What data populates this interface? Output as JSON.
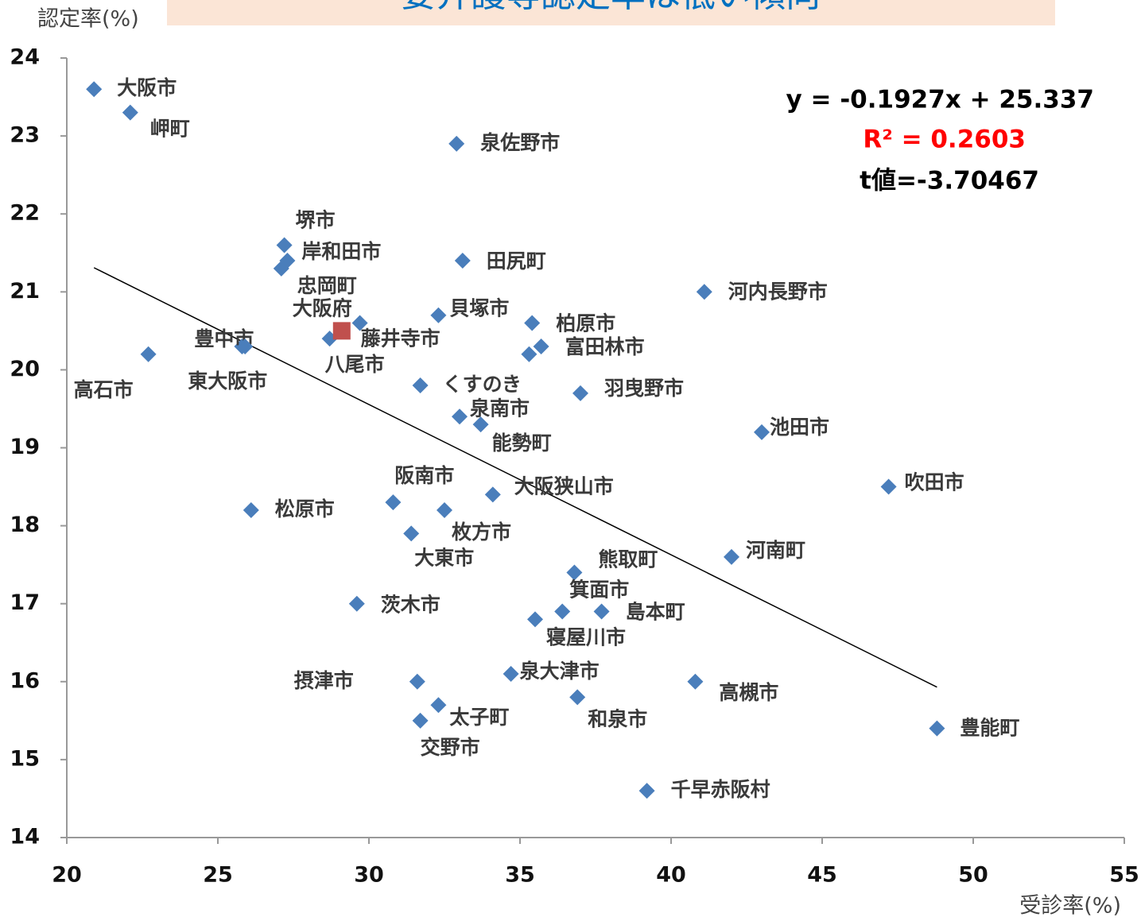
{
  "chart_data": {
    "type": "scatter",
    "title": "要介護等認定率は低い傾向",
    "y_label": "認定率(%)",
    "x_label": "受診率(%)",
    "xlim": [
      20,
      55
    ],
    "xticks": [
      20,
      25,
      30,
      35,
      40,
      45,
      50,
      55
    ],
    "ylim": [
      14,
      24
    ],
    "yticks": [
      14,
      15,
      16,
      17,
      18,
      19,
      20,
      21,
      22,
      23,
      24
    ],
    "grid": false,
    "annotations": [
      {
        "text": "y = -0.1927x + 25.337",
        "color": "#000000"
      },
      {
        "text": "R² = 0.2603",
        "color": "#ff0000"
      },
      {
        "text": "t値=-3.70467",
        "color": "#000000"
      }
    ],
    "trendline": {
      "color": "#000000",
      "x": [
        20.9,
        48.8
      ],
      "values": [
        21.31,
        15.93
      ]
    },
    "series": [
      {
        "color": "#4a7ebb",
        "labels": [
          "大阪市",
          "岬町",
          "高石市",
          "豊中市",
          "東大阪市",
          "松原市",
          "堺市",
          "岸和田市",
          "忠岡町",
          "八尾市",
          "藤井寺市",
          "くすのき",
          "泉南市",
          "能勢町",
          "貝塚市",
          "泉佐野市",
          "田尻町",
          "柏原市",
          "富田林市",
          null,
          "羽曳野市",
          "河内長野市",
          "池田市",
          "吹田市",
          "阪南市",
          "枚方市",
          "大阪狭山市",
          "大東市",
          "熊取町",
          "河南町",
          "茨木市",
          "寝屋川市",
          "箕面市",
          "島本町",
          "泉大津市",
          "摂津市",
          "太子町",
          "交野市",
          "和泉市",
          "高槻市",
          "豊能町",
          "千早赤阪村"
        ],
        "x": [
          20.9,
          22.1,
          22.7,
          25.8,
          25.9,
          26.1,
          27.2,
          27.3,
          27.1,
          28.7,
          29.7,
          31.7,
          33.0,
          33.7,
          32.3,
          32.9,
          33.1,
          35.4,
          35.7,
          35.3,
          37.0,
          41.1,
          43.0,
          47.2,
          30.8,
          32.5,
          34.1,
          31.4,
          36.8,
          42.0,
          29.6,
          35.5,
          36.4,
          37.7,
          34.7,
          31.6,
          32.3,
          31.7,
          36.9,
          40.8,
          48.8,
          39.2
        ],
        "values": [
          23.6,
          23.3,
          20.2,
          20.3,
          20.3,
          18.2,
          21.6,
          21.4,
          21.3,
          20.4,
          20.6,
          19.8,
          19.4,
          19.3,
          20.7,
          22.9,
          21.4,
          20.6,
          20.3,
          20.2,
          19.7,
          21.0,
          19.2,
          18.5,
          18.3,
          18.2,
          18.4,
          17.9,
          17.4,
          17.6,
          17.0,
          16.8,
          16.9,
          16.9,
          16.1,
          16.0,
          15.7,
          15.5,
          15.8,
          16.0,
          15.4,
          14.6
        ]
      },
      {
        "name": "大阪府",
        "color": "#c0504d",
        "x": [
          29.1
        ],
        "values": [
          20.5
        ]
      }
    ]
  }
}
